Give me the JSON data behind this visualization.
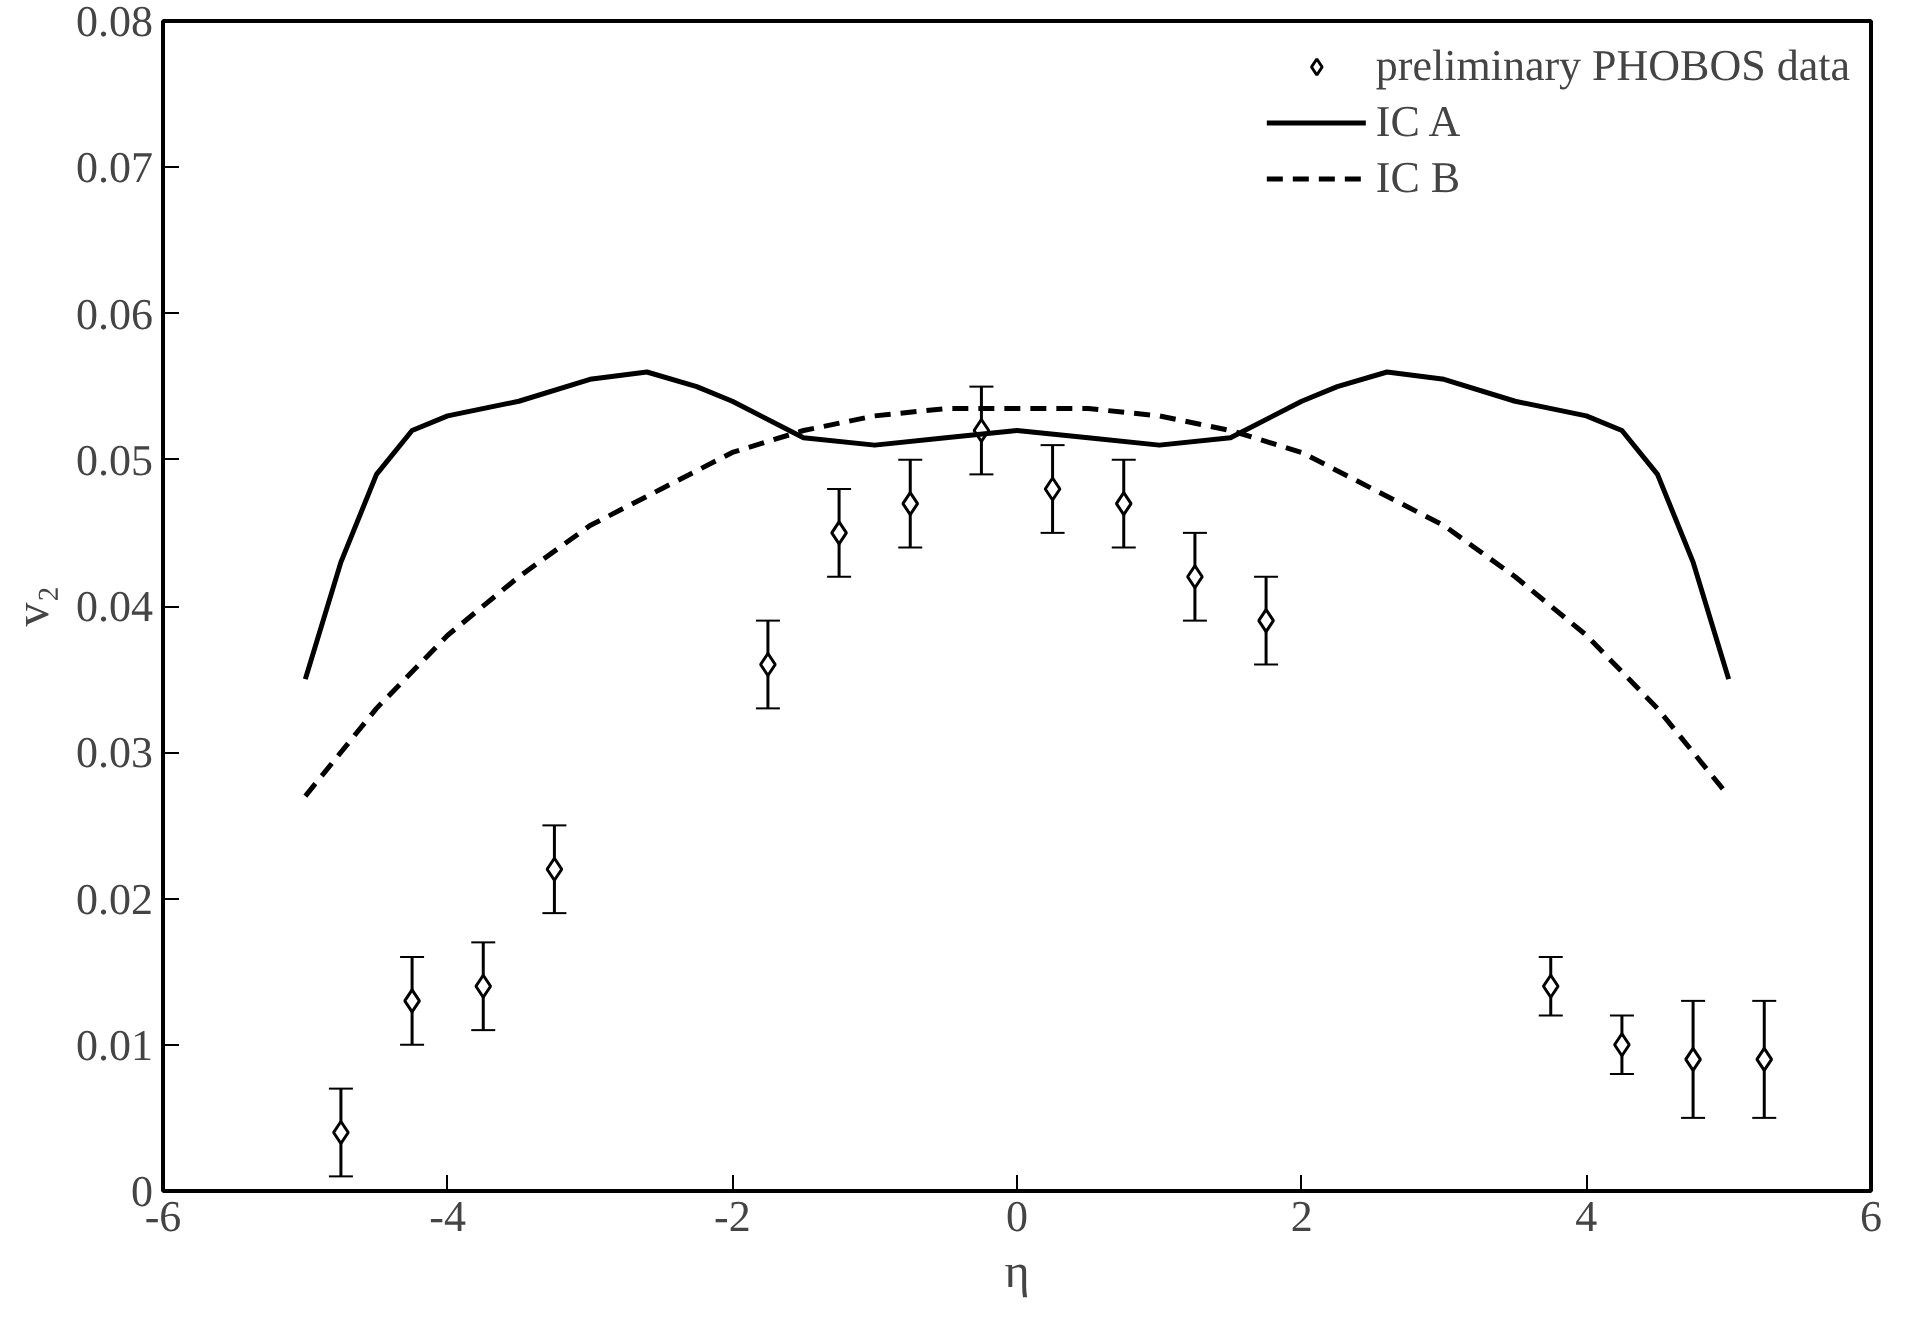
{
  "chart_data": {
    "type": "scatter",
    "xlabel": "η",
    "ylabel": "v₂",
    "xlim": [
      -6,
      6
    ],
    "ylim": [
      0,
      0.08
    ],
    "xticks": [
      -6,
      -4,
      -2,
      0,
      2,
      4,
      6
    ],
    "yticks": [
      0,
      0.01,
      0.02,
      0.03,
      0.04,
      0.05,
      0.06,
      0.07,
      0.08
    ],
    "grid": false,
    "legend": "top right",
    "series": [
      {
        "name": "preliminary PHOBOS data",
        "marker": "diamond",
        "color": "#000000",
        "x": [
          -4.75,
          -4.25,
          -3.75,
          -3.25,
          -1.75,
          -1.25,
          -0.75,
          -0.25,
          0.25,
          0.75,
          1.25,
          1.75,
          3.75,
          4.25,
          4.75,
          5.25
        ],
        "values": [
          0.004,
          0.013,
          0.014,
          0.022,
          0.036,
          0.045,
          0.047,
          0.052,
          0.048,
          0.047,
          0.042,
          0.039,
          0.014,
          0.01,
          0.009,
          0.009
        ],
        "errors": [
          0.003,
          0.003,
          0.003,
          0.003,
          0.003,
          0.003,
          0.003,
          0.003,
          0.003,
          0.003,
          0.003,
          0.003,
          0.002,
          0.002,
          0.004,
          0.004
        ]
      },
      {
        "name": "IC A",
        "type": "line",
        "line_style": "solid",
        "color": "#000000",
        "x": [
          -5,
          -4.75,
          -4.5,
          -4.25,
          -4,
          -3.5,
          -3,
          -2.6,
          -2.25,
          -2,
          -1.5,
          -1,
          -0.5,
          0,
          0.5,
          1,
          1.5,
          2,
          2.25,
          2.6,
          3,
          3.5,
          4,
          4.25,
          4.5,
          4.75,
          5
        ],
        "values": [
          0.035,
          0.043,
          0.049,
          0.052,
          0.053,
          0.054,
          0.0555,
          0.056,
          0.055,
          0.054,
          0.0515,
          0.051,
          0.0515,
          0.052,
          0.0515,
          0.051,
          0.0515,
          0.054,
          0.055,
          0.056,
          0.0555,
          0.054,
          0.053,
          0.052,
          0.049,
          0.043,
          0.035
        ]
      },
      {
        "name": "IC B",
        "type": "line",
        "line_style": "dashed",
        "color": "#000000",
        "x": [
          -5,
          -4.5,
          -4,
          -3.5,
          -3,
          -2.5,
          -2,
          -1.5,
          -1,
          -0.5,
          0,
          0.5,
          1,
          1.5,
          2,
          2.5,
          3,
          3.5,
          4,
          4.5,
          5
        ],
        "values": [
          0.027,
          0.033,
          0.038,
          0.042,
          0.0455,
          0.048,
          0.0505,
          0.052,
          0.053,
          0.0535,
          0.0535,
          0.0535,
          0.053,
          0.052,
          0.0505,
          0.048,
          0.0455,
          0.042,
          0.038,
          0.033,
          0.027
        ]
      }
    ]
  }
}
